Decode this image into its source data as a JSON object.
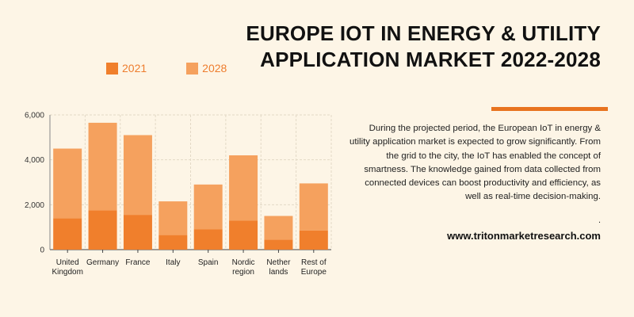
{
  "title": {
    "line1": "EUROPE IOT IN ENERGY & UTILITY",
    "line2": "APPLICATION MARKET 2022-2028"
  },
  "legend": [
    {
      "label": "2021",
      "color": "#f07f2c"
    },
    {
      "label": "2028",
      "color": "#f5a15e"
    }
  ],
  "description": "During the projected period, the European IoT in energy & utility application market is expected to grow significantly. From the grid to the city, the IoT has enabled the concept of smartness. The knowledge gained from data collected from connected devices can boost productivity and efficiency, as well as real-time decision-making.",
  "dot": ".",
  "website": "www.tritonmarketresearch.com",
  "colors": {
    "accent": "#e8731f",
    "background": "#fdf5e6"
  },
  "chart_data": {
    "type": "bar",
    "stacked": true,
    "categories": [
      [
        "United",
        "Kingdom"
      ],
      [
        "Germany"
      ],
      [
        "France"
      ],
      [
        "Italy"
      ],
      [
        "Spain"
      ],
      [
        "Nordic",
        "region"
      ],
      [
        "Nether",
        "lands"
      ],
      [
        "Rest of",
        "Europe"
      ]
    ],
    "series": [
      {
        "name": "2021",
        "color": "#f07f2c",
        "values": [
          1400,
          1750,
          1550,
          650,
          900,
          1300,
          450,
          850
        ]
      },
      {
        "name": "2028",
        "color": "#f5a15e",
        "values": [
          3100,
          3900,
          3550,
          1500,
          2000,
          2900,
          1050,
          2100
        ]
      }
    ],
    "yticks": [
      0,
      2000,
      4000,
      6000
    ],
    "ytick_labels": [
      "0",
      "2,000",
      "4,000",
      "6,000"
    ],
    "ylim": [
      0,
      6000
    ],
    "grid": true,
    "legend_position": "top-left"
  }
}
